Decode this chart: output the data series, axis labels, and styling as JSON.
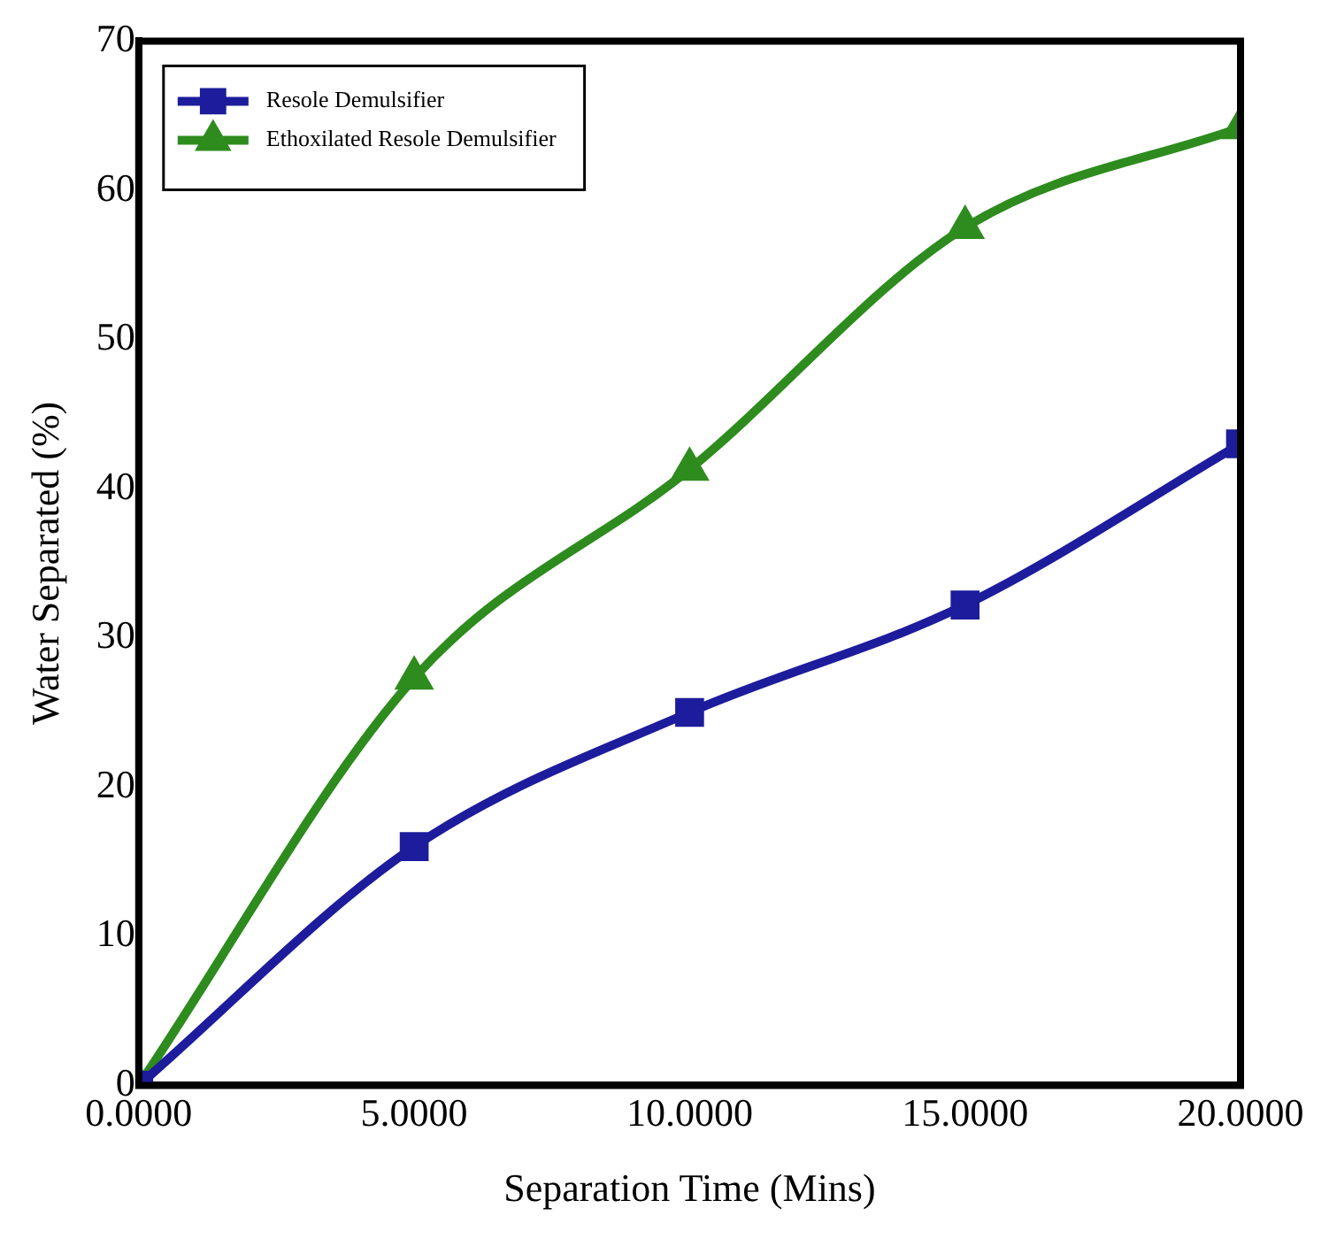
{
  "chart_data": {
    "type": "line",
    "xlabel": "Separation Time (Mins)",
    "ylabel": "Water Separated (%)",
    "x": [
      0,
      5,
      10,
      15,
      20
    ],
    "series": [
      {
        "name": "Resole Demulsifier",
        "color": "#1c1c9c",
        "marker": "square",
        "values": [
          0,
          16,
          25,
          32.2,
          43
        ]
      },
      {
        "name": "Ethoxilated Resole Demulsifier",
        "color": "#2e8b1e",
        "marker": "triangle",
        "values": [
          0,
          27.3,
          41.3,
          57.5,
          64.2
        ]
      }
    ],
    "xlim": [
      0,
      20
    ],
    "xticks": [
      {
        "value": 0,
        "label": "0.0000"
      },
      {
        "value": 5,
        "label": "5.0000"
      },
      {
        "value": 10,
        "label": "10.0000"
      },
      {
        "value": 15,
        "label": "15.0000"
      },
      {
        "value": 20,
        "label": "20.0000"
      }
    ],
    "ylim": [
      0,
      70
    ],
    "yticks": [
      0,
      10,
      20,
      30,
      40,
      50,
      60,
      70
    ],
    "grid": false,
    "legend": "top left",
    "line_style": "solid"
  }
}
